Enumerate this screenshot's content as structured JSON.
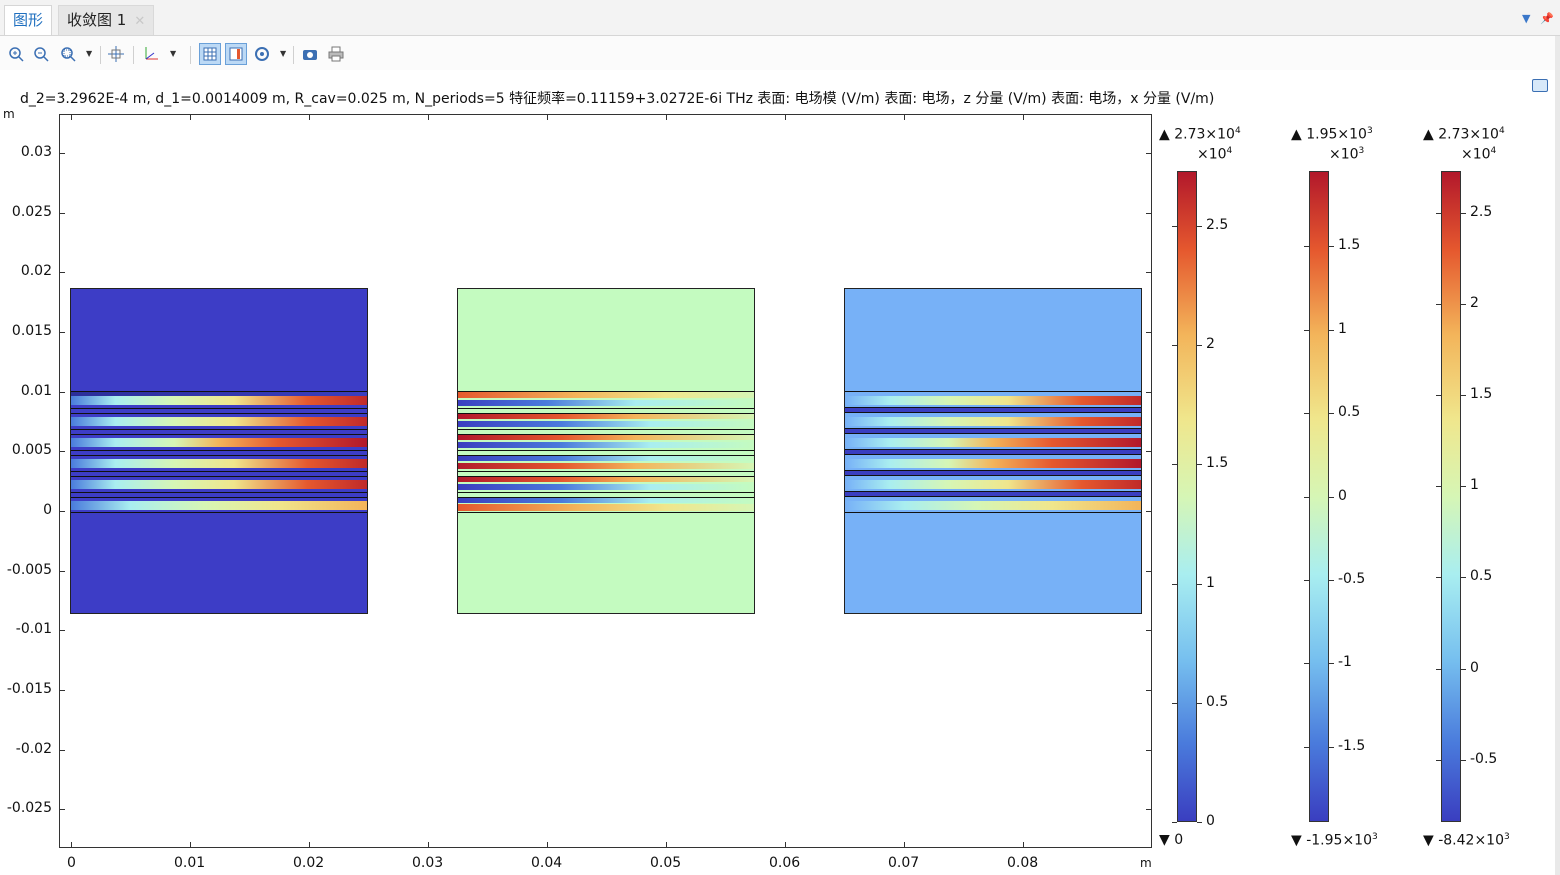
{
  "tabs": {
    "active": "图形",
    "inactive": "收敛图 1"
  },
  "icons": {
    "zoom_in": "zoom-in-icon",
    "zoom_out": "zoom-out-icon",
    "zoom_box": "zoom-box-icon",
    "pan": "pan-icon",
    "axes": "axes-orientation-icon",
    "grid": "grid-toggle-icon",
    "legend": "legend-toggle-icon",
    "scene_light": "scene-light-icon",
    "camera": "camera-icon",
    "print": "print-icon",
    "pin": "pin-icon"
  },
  "plot": {
    "title": "d_2=3.2962E-4 m, d_1=0.0014009 m, R_cav=0.025 m, N_periods=5 特征频率=0.11159+3.0272E-6i THz   表面: 电场模 (V/m)  表面: 电场，z 分量 (V/m)  表面: 电场，x 分量 (V/m)",
    "y_unit": "m",
    "x_unit": "m",
    "y_ticks": [
      "0.03",
      "0.025",
      "0.02",
      "0.015",
      "0.01",
      "0.005",
      "0",
      "-0.005",
      "-0.01",
      "-0.015",
      "-0.02",
      "-0.025"
    ],
    "x_ticks": [
      "0",
      "0.01",
      "0.02",
      "0.03",
      "0.04",
      "0.05",
      "0.06",
      "0.07",
      "0.08"
    ]
  },
  "chart_data": {
    "type": "heatmap",
    "xlim": [
      -0.001,
      0.0905
    ],
    "ylim": [
      -0.0285,
      0.033
    ],
    "panels": [
      {
        "name": "电场模",
        "background_color": "#3d3dc6"
      },
      {
        "name": "电场，z 分量",
        "background_color": "#c4fbc0"
      },
      {
        "name": "电场，x 分量",
        "background_color": "#77b1f7"
      }
    ]
  },
  "colorbars": [
    {
      "max": "▲ 2.73×10",
      "max_exp": "4",
      "mult": "×10",
      "mult_exp": "4",
      "min": "▼ 0",
      "ticks": [
        "2.5",
        "2",
        "1.5",
        "1",
        "0.5",
        "0"
      ]
    },
    {
      "max": "▲ 1.95×10",
      "max_exp": "3",
      "mult": "×10",
      "mult_exp": "3",
      "min": "▼ -1.95×10",
      "min_exp": "3",
      "ticks": [
        "1.5",
        "1",
        "0.5",
        "0",
        "-0.5",
        "-1",
        "-1.5"
      ]
    },
    {
      "max": "▲ 2.73×10",
      "max_exp": "4",
      "mult": "×10",
      "mult_exp": "4",
      "min": "▼ -8.42×10",
      "min_exp": "3",
      "ticks": [
        "2.5",
        "2",
        "1.5",
        "1",
        "0.5",
        "0",
        "-0.5"
      ]
    }
  ]
}
